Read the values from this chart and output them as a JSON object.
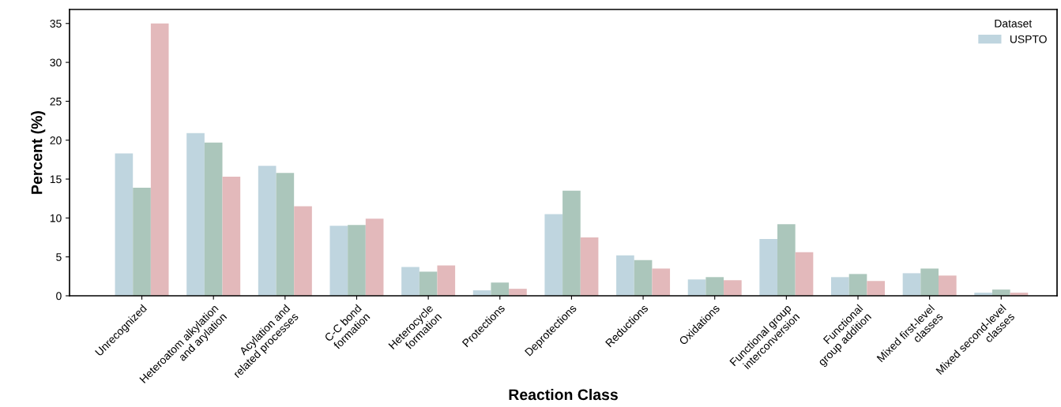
{
  "chart_data": {
    "type": "bar",
    "xlabel": "Reaction Class",
    "ylabel": "Percent (%)",
    "legend_title": "Dataset",
    "categories": [
      "Unrecognized",
      "Heteroatom alkylation\nand arylation",
      "Acylation and\nrelated processes",
      "C-C bond\nformation",
      "Heterocycle\nformation",
      "Protections",
      "Deprotections",
      "Reductions",
      "Oxidations",
      "Functional group\ninterconversion",
      "Functional\ngroup addition",
      "Mixed first-level\nclasses",
      "Mixed second-level\nclasses"
    ],
    "series": [
      {
        "name": "USPTO",
        "color": "#bfd5df",
        "values": [
          18.3,
          20.9,
          16.7,
          9.0,
          3.7,
          0.7,
          10.5,
          5.2,
          2.1,
          7.3,
          2.4,
          2.9,
          0.4
        ]
      },
      {
        "color": "#abc6bb",
        "values": [
          13.9,
          19.7,
          15.8,
          9.1,
          3.1,
          1.7,
          13.5,
          4.6,
          2.4,
          9.2,
          2.8,
          3.5,
          0.8
        ]
      },
      {
        "color": "#e3b9bb",
        "values": [
          35.0,
          15.3,
          11.5,
          9.9,
          3.9,
          0.9,
          7.5,
          3.5,
          2.0,
          5.6,
          1.9,
          2.6,
          0.4
        ]
      }
    ],
    "ylim": [
      0,
      36.8
    ],
    "yticks": [
      0,
      5,
      10,
      15,
      20,
      25,
      30,
      35
    ],
    "grid": false,
    "legend": "top right"
  }
}
